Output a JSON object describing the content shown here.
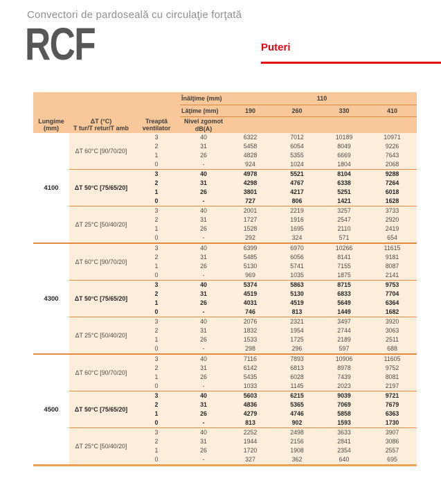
{
  "page": {
    "subtitle": "Convectori de pardoseală cu circulaţie forţată",
    "product": "RCF",
    "section": "Puteri"
  },
  "colors": {
    "accent_red": "#e30613",
    "header_bg": "#f8c89b",
    "body_bg": "#fceedb",
    "line_orange": "#e28b3c",
    "bottom_line_orange": "#eca153",
    "product_gray": "#57575a",
    "subtitle_gray": "#8f8f8f"
  },
  "table": {
    "height_label": "Înălţime (mm)",
    "height_value": "110",
    "width_label": "Lăţime (mm)",
    "width_values": [
      "190",
      "260",
      "330",
      "410"
    ],
    "col_headers": [
      {
        "line1": "Lungime",
        "line2": "(mm)"
      },
      {
        "line1": "ΔT (°C)",
        "line2": "T tur/T retur/T amb"
      },
      {
        "line1": "Treaptă",
        "line2": "ventilator"
      },
      {
        "line1": "Nivel zgomot",
        "line2": "dB(A)"
      }
    ],
    "groups": [
      {
        "length": "4100",
        "blocks": [
          {
            "dt": "ΔT 60°C [90/70/20]",
            "bold": false,
            "rows": [
              {
                "step": "3",
                "noise": "40",
                "values": [
                  "6322",
                  "7012",
                  "10189",
                  "10971"
                ]
              },
              {
                "step": "2",
                "noise": "31",
                "values": [
                  "5458",
                  "6054",
                  "8049",
                  "9226"
                ]
              },
              {
                "step": "1",
                "noise": "26",
                "values": [
                  "4828",
                  "5355",
                  "6669",
                  "7643"
                ]
              },
              {
                "step": "0",
                "noise": "-",
                "values": [
                  "924",
                  "1024",
                  "1804",
                  "2068"
                ]
              }
            ]
          },
          {
            "dt": "ΔT 50°C [75/65/20]",
            "bold": true,
            "rows": [
              {
                "step": "3",
                "noise": "40",
                "values": [
                  "4978",
                  "5521",
                  "8104",
                  "9288"
                ]
              },
              {
                "step": "2",
                "noise": "31",
                "values": [
                  "4298",
                  "4767",
                  "6338",
                  "7264"
                ]
              },
              {
                "step": "1",
                "noise": "26",
                "values": [
                  "3801",
                  "4217",
                  "5251",
                  "6018"
                ]
              },
              {
                "step": "0",
                "noise": "-",
                "values": [
                  "727",
                  "806",
                  "1421",
                  "1628"
                ]
              }
            ]
          },
          {
            "dt": "ΔT 25°C [50/40/20]",
            "bold": false,
            "rows": [
              {
                "step": "3",
                "noise": "40",
                "values": [
                  "2001",
                  "2219",
                  "3257",
                  "3733"
                ]
              },
              {
                "step": "2",
                "noise": "31",
                "values": [
                  "1727",
                  "1916",
                  "2547",
                  "2920"
                ]
              },
              {
                "step": "1",
                "noise": "26",
                "values": [
                  "1528",
                  "1695",
                  "2110",
                  "2419"
                ]
              },
              {
                "step": "0",
                "noise": "-",
                "values": [
                  "292",
                  "324",
                  "571",
                  "654"
                ]
              }
            ]
          }
        ]
      },
      {
        "length": "4300",
        "blocks": [
          {
            "dt": "ΔT 60°C [90/70/20]",
            "bold": false,
            "rows": [
              {
                "step": "3",
                "noise": "40",
                "values": [
                  "6399",
                  "6970",
                  "10266",
                  "11615"
                ]
              },
              {
                "step": "2",
                "noise": "31",
                "values": [
                  "5485",
                  "6056",
                  "8141",
                  "9181"
                ]
              },
              {
                "step": "1",
                "noise": "26",
                "values": [
                  "5130",
                  "5741",
                  "7155",
                  "8087"
                ]
              },
              {
                "step": "0",
                "noise": "-",
                "values": [
                  "969",
                  "1035",
                  "1875",
                  "2141"
                ]
              }
            ]
          },
          {
            "dt": "ΔT 50°C [75/65/20]",
            "bold": true,
            "rows": [
              {
                "step": "3",
                "noise": "40",
                "values": [
                  "5374",
                  "5863",
                  "8715",
                  "9753"
                ]
              },
              {
                "step": "2",
                "noise": "31",
                "values": [
                  "4519",
                  "5130",
                  "6833",
                  "7704"
                ]
              },
              {
                "step": "1",
                "noise": "26",
                "values": [
                  "4031",
                  "4519",
                  "5649",
                  "6364"
                ]
              },
              {
                "step": "0",
                "noise": "-",
                "values": [
                  "746",
                  "813",
                  "1449",
                  "1682"
                ]
              }
            ]
          },
          {
            "dt": "ΔT 25°C [50/40/20]",
            "bold": false,
            "rows": [
              {
                "step": "3",
                "noise": "40",
                "values": [
                  "2076",
                  "2321",
                  "3497",
                  "3920"
                ]
              },
              {
                "step": "2",
                "noise": "31",
                "values": [
                  "1832",
                  "1954",
                  "2744",
                  "3063"
                ]
              },
              {
                "step": "1",
                "noise": "26",
                "values": [
                  "1533",
                  "1725",
                  "2189",
                  "2511"
                ]
              },
              {
                "step": "0",
                "noise": "-",
                "values": [
                  "298",
                  "296",
                  "597",
                  "688"
                ]
              }
            ]
          }
        ]
      },
      {
        "length": "4500",
        "blocks": [
          {
            "dt": "ΔT 60°C [90/70/20]",
            "bold": false,
            "rows": [
              {
                "step": "3",
                "noise": "40",
                "values": [
                  "7116",
                  "7893",
                  "10906",
                  "11605"
                ]
              },
              {
                "step": "2",
                "noise": "31",
                "values": [
                  "6142",
                  "6813",
                  "8978",
                  "9752"
                ]
              },
              {
                "step": "1",
                "noise": "26",
                "values": [
                  "5435",
                  "6028",
                  "7439",
                  "8081"
                ]
              },
              {
                "step": "0",
                "noise": "-",
                "values": [
                  "1033",
                  "1145",
                  "2023",
                  "2197"
                ]
              }
            ]
          },
          {
            "dt": "ΔT 50°C [75/65/20]",
            "bold": true,
            "rows": [
              {
                "step": "3",
                "noise": "40",
                "values": [
                  "5603",
                  "6215",
                  "9039",
                  "9721"
                ]
              },
              {
                "step": "2",
                "noise": "31",
                "values": [
                  "4836",
                  "5365",
                  "7069",
                  "7679"
                ]
              },
              {
                "step": "1",
                "noise": "26",
                "values": [
                  "4279",
                  "4746",
                  "5858",
                  "6363"
                ]
              },
              {
                "step": "0",
                "noise": "-",
                "values": [
                  "813",
                  "902",
                  "1593",
                  "1730"
                ]
              }
            ]
          },
          {
            "dt": "ΔT 25°C [50/40/20]",
            "bold": false,
            "rows": [
              {
                "step": "3",
                "noise": "40",
                "values": [
                  "2252",
                  "2498",
                  "3633",
                  "3907"
                ]
              },
              {
                "step": "2",
                "noise": "31",
                "values": [
                  "1944",
                  "2156",
                  "2841",
                  "3086"
                ]
              },
              {
                "step": "1",
                "noise": "26",
                "values": [
                  "1720",
                  "1908",
                  "2354",
                  "2557"
                ]
              },
              {
                "step": "0",
                "noise": "-",
                "values": [
                  "327",
                  "362",
                  "640",
                  "695"
                ]
              }
            ]
          }
        ]
      }
    ]
  }
}
